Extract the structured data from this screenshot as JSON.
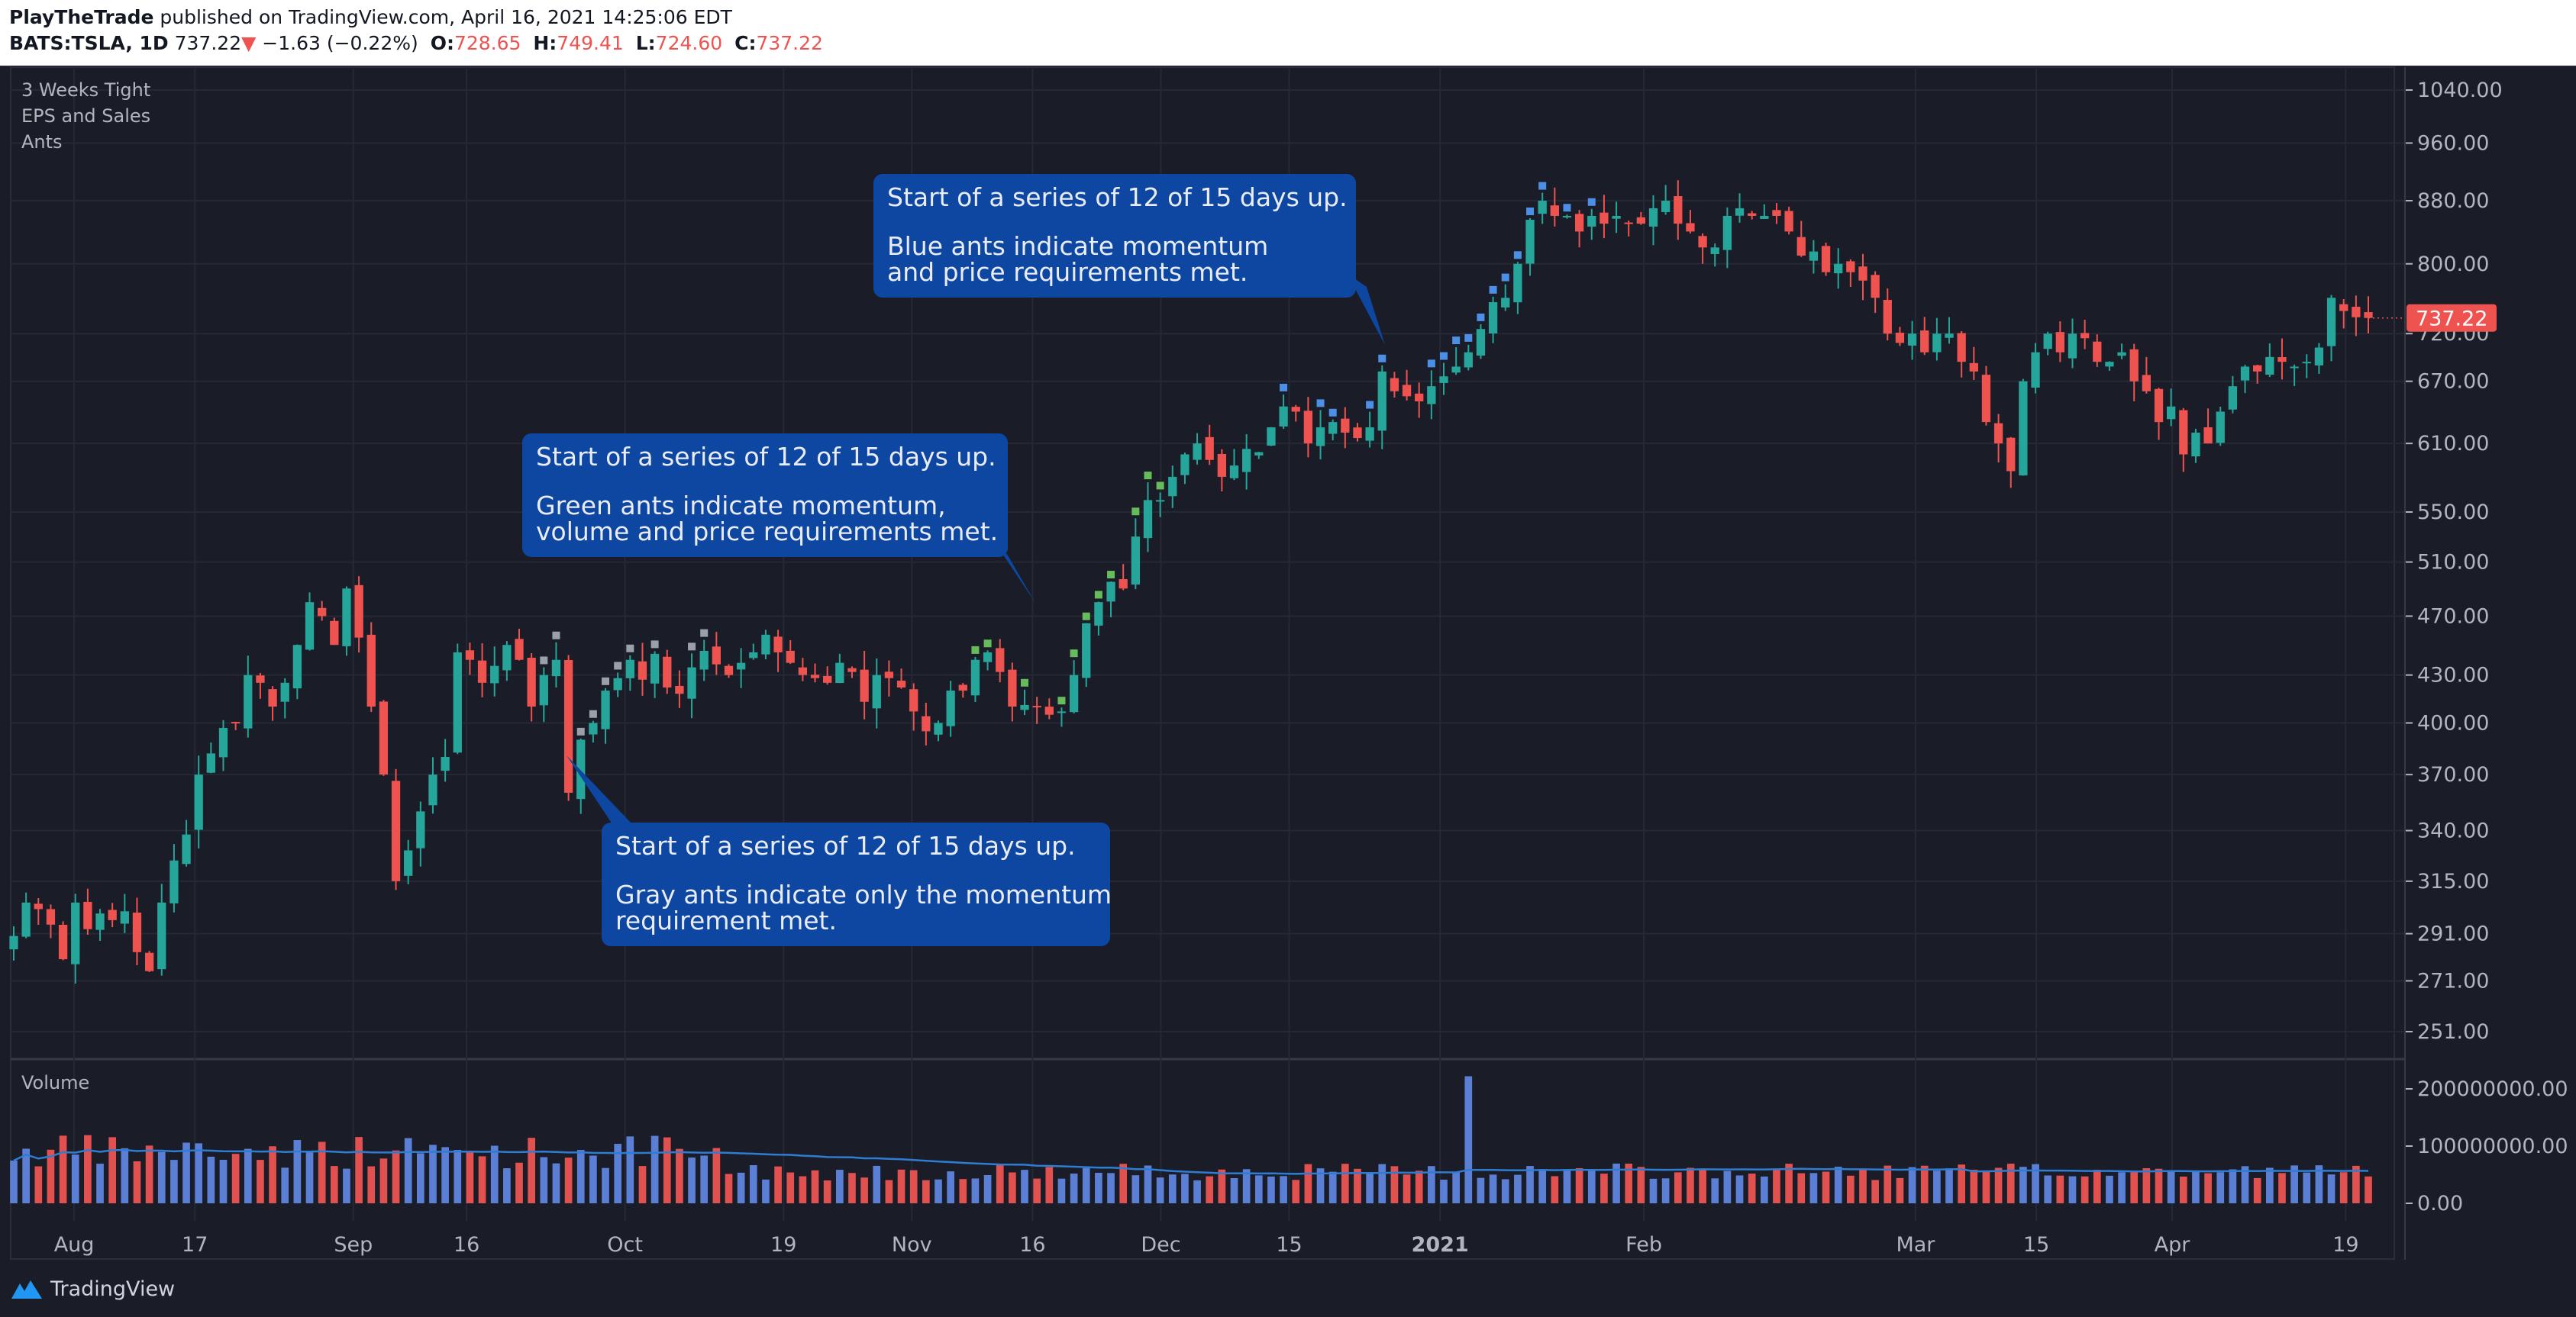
{
  "header": {
    "author": "PlayTheTrade",
    "published": "published on TradingView.com, April 16, 2021 14:25:06 EDT",
    "symbol": "BATS:TSLA, 1D",
    "last": "737.22",
    "arrow": "▼",
    "change": "−1.63 (−0.22%)",
    "o_label": "O:",
    "o_value": "728.65",
    "h_label": "H:",
    "h_value": "749.41",
    "l_label": "L:",
    "l_value": "724.60",
    "c_label": "C:",
    "c_value": "737.22"
  },
  "indicators": [
    "3 Weeks Tight",
    "EPS and Sales",
    "Ants"
  ],
  "volume_label": "Volume",
  "callouts": {
    "gray": {
      "title": "Start of a series of 12 of 15 days up.",
      "body": "Gray ants indicate only the momentum\nrequirement met."
    },
    "green": {
      "title": "Start of a series of 12 of 15 days up.",
      "body": "Green ants indicate momentum,\nvolume and price requirements met."
    },
    "blue": {
      "title": "Start of a series of 12 of 15 days up.",
      "body": "Blue ants indicate momentum\nand price requirements met."
    }
  },
  "footer": {
    "brand": "TradingView"
  },
  "colors": {
    "up": "#26a69a",
    "down": "#ef5350",
    "vol_up": "#5b7fd4",
    "vol_down": "#e0514f",
    "ant_gray": "#9aa0aa",
    "ant_green": "#66bb5a",
    "ant_blue": "#4c8fe6",
    "callout": "#0d47a1"
  },
  "chart_data": {
    "type": "candlestick",
    "symbol": "BATS:TSLA",
    "interval": "1D",
    "scale": "log",
    "price_ticks": [
      251,
      271,
      291,
      315,
      340,
      370,
      400,
      430,
      470,
      510,
      550,
      610,
      670,
      720,
      800,
      880,
      960,
      1040
    ],
    "price_tick_labels": [
      "251.00",
      "271.00",
      "291.00",
      "315.00",
      "340.00",
      "370.00",
      "400.00",
      "430.00",
      "470.00",
      "510.00",
      "550.00",
      "610.00",
      "670.00",
      "720.00",
      "800.00",
      "880.00",
      "960.00",
      "1040.00"
    ],
    "last_price_label": "737.22",
    "x_labels": [
      "Aug",
      "17",
      "Sep",
      "16",
      "Oct",
      "19",
      "Nov",
      "16",
      "Dec",
      "15",
      "2021",
      "Feb",
      "Mar",
      "15",
      "Apr",
      "19"
    ],
    "closes": [
      290,
      305,
      302,
      295,
      280,
      305,
      293,
      300,
      297,
      301,
      283,
      275,
      305,
      325,
      338,
      370,
      382,
      397,
      400,
      430,
      425,
      410,
      425,
      450,
      480,
      470,
      450,
      490,
      455,
      410,
      370,
      315,
      330,
      350,
      370,
      380,
      445,
      440,
      425,
      436,
      450,
      440,
      410,
      430,
      440,
      360,
      390,
      400,
      420,
      428,
      440,
      427,
      444,
      422,
      418,
      435,
      446,
      437,
      430,
      438,
      445,
      457,
      445,
      438,
      430,
      428,
      425,
      438,
      432,
      413,
      430,
      428,
      422,
      407,
      395,
      400,
      420,
      420,
      440,
      445,
      432,
      410,
      411,
      410,
      405,
      407,
      430,
      465,
      480,
      495,
      490,
      530,
      560,
      560,
      580,
      600,
      610,
      595,
      580,
      590,
      605,
      602,
      625,
      645,
      640,
      610,
      625,
      630,
      620,
      615,
      625,
      680,
      660,
      655,
      650,
      665,
      675,
      685,
      700,
      725,
      755,
      760,
      800,
      855,
      880,
      860,
      860,
      840,
      860,
      850,
      860,
      850,
      850,
      870,
      880,
      850,
      840,
      820,
      820,
      860,
      870,
      860,
      860,
      860,
      840,
      810,
      815,
      790,
      800,
      790,
      780,
      760,
      720,
      710,
      720,
      700,
      720,
      720,
      690,
      680,
      630,
      610,
      585,
      670,
      700,
      720,
      700,
      720,
      715,
      690,
      690,
      700,
      670,
      660,
      630,
      645,
      600,
      620,
      610,
      640,
      665,
      685,
      680,
      695,
      690,
      685,
      690,
      705,
      760,
      745,
      738,
      737.22
    ],
    "volume": {
      "ticks": [
        0,
        100000000,
        200000000
      ],
      "tick_labels": [
        "0.00",
        "100000000.00",
        "200000000.00"
      ],
      "peak": 222000000
    },
    "annotations": [
      "Start of a series of 12 of 15 days up. Gray ants indicate only the momentum requirement met.",
      "Start of a series of 12 of 15 days up. Green ants indicate momentum, volume and price requirements met.",
      "Start of a series of 12 of 15 days up. Blue ants indicate momentum and price requirements met."
    ]
  }
}
